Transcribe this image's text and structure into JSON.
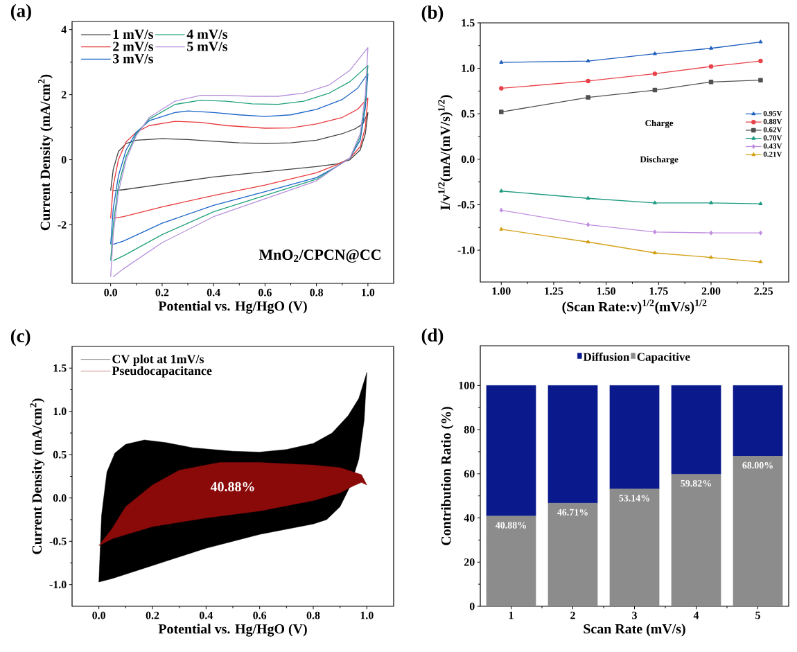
{
  "chart_data": [
    {
      "type": "line",
      "title": "(a)",
      "xlabel": "Potential vs. Hg/HgO (V)",
      "ylabel": "Current Density (mA/cm$^{2}$)",
      "xlim": [
        -0.15,
        1.1
      ],
      "ylim": [
        -3.8,
        4.25
      ],
      "xticks": [
        {
          "value": 0,
          "label": "0.0"
        },
        {
          "value": 0.2,
          "label": "0.2"
        },
        {
          "value": 0.4,
          "label": "0.4"
        },
        {
          "value": 0.6,
          "label": "0.6"
        },
        {
          "value": 0.8,
          "label": "0.8"
        },
        {
          "value": 1.0,
          "label": "1.0"
        }
      ],
      "yticks": [
        -2,
        0,
        2,
        4
      ],
      "legend": "top left",
      "annotations": [
        "MnO$_{2}$/CPCN@CC"
      ],
      "series": [
        {
          "name": "1 mV/s",
          "color": "#404040",
          "x": [
            0,
            0.01,
            0.03,
            0.06,
            0.1,
            0.2,
            0.3,
            0.4,
            0.5,
            0.6,
            0.7,
            0.8,
            0.9,
            0.95,
            0.98,
            1.0
          ],
          "values": [
            -0.95,
            -0.3,
            0.25,
            0.5,
            0.6,
            0.65,
            0.62,
            0.57,
            0.52,
            0.5,
            0.52,
            0.6,
            0.8,
            0.95,
            1.1,
            1.45
          ]
        },
        {
          "color": "#404040",
          "x": [
            0.01,
            0.05,
            0.2,
            0.4,
            0.6,
            0.8,
            0.88,
            0.93,
            0.97,
            0.99,
            1.0
          ],
          "values": [
            -0.95,
            -0.92,
            -0.75,
            -0.53,
            -0.37,
            -0.21,
            -0.13,
            0.0,
            0.3,
            0.8,
            1.45
          ]
        },
        {
          "name": "2 mV/s",
          "color": "#e8393b",
          "x": [
            0,
            0.01,
            0.03,
            0.06,
            0.1,
            0.15,
            0.25,
            0.35,
            0.45,
            0.6,
            0.7,
            0.8,
            0.9,
            0.96,
            1.0
          ],
          "values": [
            -1.8,
            -0.8,
            0.0,
            0.55,
            0.85,
            1.05,
            1.18,
            1.15,
            1.05,
            0.97,
            0.98,
            1.1,
            1.3,
            1.55,
            1.9
          ]
        },
        {
          "color": "#e8393b",
          "x": [
            0.01,
            0.05,
            0.2,
            0.4,
            0.6,
            0.8,
            0.88,
            0.93,
            0.97,
            0.99,
            1.0
          ],
          "values": [
            -1.8,
            -1.75,
            -1.45,
            -1.1,
            -0.78,
            -0.4,
            -0.15,
            0.05,
            0.4,
            1.0,
            1.9
          ]
        },
        {
          "name": "3 mV/s",
          "color": "#1a64c8",
          "x": [
            0,
            0.01,
            0.03,
            0.06,
            0.1,
            0.15,
            0.25,
            0.3,
            0.4,
            0.5,
            0.6,
            0.7,
            0.8,
            0.9,
            0.96,
            1.0
          ],
          "values": [
            -2.6,
            -1.5,
            -0.5,
            0.3,
            0.85,
            1.2,
            1.45,
            1.5,
            1.45,
            1.38,
            1.33,
            1.38,
            1.55,
            1.85,
            2.2,
            2.65
          ]
        },
        {
          "color": "#1a64c8",
          "x": [
            0.01,
            0.05,
            0.2,
            0.4,
            0.6,
            0.8,
            0.88,
            0.93,
            0.97,
            0.99,
            1.0
          ],
          "values": [
            -2.6,
            -2.5,
            -1.95,
            -1.4,
            -0.98,
            -0.55,
            -0.2,
            0.05,
            0.6,
            1.6,
            2.65
          ]
        },
        {
          "name": "4 mV/s",
          "color": "#1fa07a",
          "x": [
            0,
            0.01,
            0.03,
            0.06,
            0.1,
            0.15,
            0.25,
            0.35,
            0.45,
            0.55,
            0.65,
            0.75,
            0.85,
            0.93,
            1.0
          ],
          "values": [
            -3.1,
            -2.0,
            -0.8,
            0.1,
            0.8,
            1.25,
            1.7,
            1.83,
            1.8,
            1.72,
            1.7,
            1.8,
            2.05,
            2.4,
            2.9
          ]
        },
        {
          "color": "#1fa07a",
          "x": [
            0.01,
            0.05,
            0.2,
            0.4,
            0.6,
            0.8,
            0.88,
            0.93,
            0.97,
            0.99,
            1.0
          ],
          "values": [
            -3.1,
            -2.95,
            -2.3,
            -1.6,
            -1.1,
            -0.6,
            -0.2,
            0.05,
            0.7,
            1.8,
            2.9
          ]
        },
        {
          "name": "5 mV/s",
          "color": "#b48fdc",
          "x": [
            0,
            0.01,
            0.03,
            0.06,
            0.1,
            0.15,
            0.25,
            0.35,
            0.45,
            0.55,
            0.65,
            0.75,
            0.85,
            0.93,
            1.0
          ],
          "values": [
            -3.6,
            -2.3,
            -1.0,
            0.0,
            0.75,
            1.3,
            1.8,
            1.98,
            1.98,
            1.95,
            1.95,
            2.05,
            2.3,
            2.75,
            3.45
          ]
        },
        {
          "color": "#b48fdc",
          "x": [
            0.01,
            0.05,
            0.2,
            0.4,
            0.6,
            0.8,
            0.88,
            0.93,
            0.97,
            0.99,
            1.0
          ],
          "values": [
            -3.6,
            -3.35,
            -2.55,
            -1.75,
            -1.2,
            -0.65,
            -0.2,
            0.05,
            0.8,
            2.0,
            3.45
          ]
        }
      ]
    },
    {
      "type": "line",
      "title": "(b)",
      "xlabel": "(Scan Rate:v)$^{1/2}$(mV/s)$^{1/2}$",
      "ylabel": "I/v$^{1/2}$(mA/(mV/s)$^{1/2}$)",
      "xlim": [
        0.9,
        2.37
      ],
      "ylim": [
        -1.35,
        1.5
      ],
      "xticks": [
        {
          "value": 1,
          "label": "1.00"
        },
        {
          "value": 1.25,
          "label": "1.25"
        },
        {
          "value": 1.5,
          "label": "1.50"
        },
        {
          "value": 1.75,
          "label": "1.75"
        },
        {
          "value": 2,
          "label": "2.00"
        },
        {
          "value": 2.25,
          "label": "2.25"
        }
      ],
      "yticks": [
        {
          "value": -1,
          "label": "-1.0"
        },
        {
          "value": -0.5,
          "label": "-0.5"
        },
        {
          "value": 0,
          "label": "0.0"
        },
        {
          "value": 0.5,
          "label": "0.5"
        },
        {
          "value": 1,
          "label": "1.0"
        },
        {
          "value": 1.5,
          "label": "1.5"
        }
      ],
      "legend": "right",
      "annotations": [
        "Charge",
        "Discharge"
      ],
      "x": [
        1,
        1.414,
        1.732,
        2,
        2.236
      ],
      "series": [
        {
          "name": "0.95V",
          "color": "#1f5fbf",
          "marker": "triangle",
          "values": [
            1.065,
            1.08,
            1.16,
            1.22,
            1.29
          ]
        },
        {
          "name": "0.88V",
          "color": "#e8434a",
          "marker": "circle",
          "values": [
            0.78,
            0.86,
            0.94,
            1.02,
            1.08
          ]
        },
        {
          "name": "0.62V",
          "color": "#505050",
          "marker": "square",
          "values": [
            0.52,
            0.68,
            0.76,
            0.85,
            0.87
          ]
        },
        {
          "name": "0.70V",
          "color": "#1a9a80",
          "marker": "triangle",
          "values": [
            -0.35,
            -0.43,
            -0.48,
            -0.48,
            -0.49
          ]
        },
        {
          "name": "0.43V",
          "color": "#c08ee0",
          "marker": "diamond",
          "values": [
            -0.56,
            -0.72,
            -0.8,
            -0.81,
            -0.81
          ]
        },
        {
          "name": "0.21V",
          "color": "#d4a017",
          "marker": "triangle",
          "values": [
            -0.77,
            -0.91,
            -1.03,
            -1.08,
            -1.13
          ]
        }
      ]
    },
    {
      "type": "area",
      "title": "(c)",
      "xlabel": "Potential vs. Hg/HgO (V)",
      "ylabel": "Current Density (mA/cm$^{2}$)",
      "xlim": [
        -0.1,
        1.1
      ],
      "ylim": [
        -1.25,
        1.75
      ],
      "xticks": [
        {
          "value": 0,
          "label": "0.0"
        },
        {
          "value": 0.2,
          "label": "0.2"
        },
        {
          "value": 0.4,
          "label": "0.4"
        },
        {
          "value": 0.6,
          "label": "0.6"
        },
        {
          "value": 0.8,
          "label": "0.8"
        },
        {
          "value": 1.0,
          "label": "1.0"
        }
      ],
      "yticks": [
        {
          "value": -1,
          "label": "-1.0"
        },
        {
          "value": -0.5,
          "label": "-0.5"
        },
        {
          "value": 0,
          "label": "0.0"
        },
        {
          "value": 0.5,
          "label": "0.5"
        },
        {
          "value": 1,
          "label": "1.0"
        },
        {
          "value": 1.5,
          "label": "1.5"
        }
      ],
      "legend": "top left",
      "annotations": [
        "40.88%"
      ],
      "series": [
        {
          "name": "CV plot at 1mV/s",
          "color": "#000000",
          "x": [
            0,
            0.01,
            0.03,
            0.06,
            0.1,
            0.17,
            0.25,
            0.35,
            0.5,
            0.6,
            0.7,
            0.8,
            0.87,
            0.93,
            0.97,
            1.0,
            0.99,
            0.97,
            0.94,
            0.9,
            0.85,
            0.8,
            0.6,
            0.4,
            0.2,
            0.05,
            0.0
          ],
          "values": [
            -0.97,
            -0.2,
            0.3,
            0.52,
            0.62,
            0.67,
            0.64,
            0.58,
            0.54,
            0.53,
            0.56,
            0.63,
            0.75,
            0.95,
            1.15,
            1.45,
            0.9,
            0.45,
            0.15,
            -0.1,
            -0.25,
            -0.3,
            -0.42,
            -0.58,
            -0.78,
            -0.93,
            -0.97
          ]
        },
        {
          "name": "Pseudocapacitance",
          "color": "#8a0a0a",
          "x": [
            0,
            0.05,
            0.1,
            0.2,
            0.3,
            0.45,
            0.6,
            0.8,
            0.9,
            0.95,
            0.98,
            1.0,
            0.98,
            0.95,
            0.9,
            0.8,
            0.6,
            0.4,
            0.2,
            0.05,
            0.0
          ],
          "values": [
            -0.55,
            -0.35,
            -0.1,
            0.15,
            0.32,
            0.41,
            0.41,
            0.38,
            0.35,
            0.3,
            0.27,
            0.15,
            0.18,
            0.14,
            0.06,
            -0.03,
            -0.15,
            -0.23,
            -0.33,
            -0.47,
            -0.55
          ]
        }
      ]
    },
    {
      "type": "bar",
      "stacked": true,
      "title": "(d)",
      "xlabel": "Scan Rate (mV/s)",
      "ylabel": "Contribution Ratio (%)",
      "categories": [
        "1",
        "2",
        "3",
        "4",
        "5"
      ],
      "ylim": [
        0,
        118
      ],
      "yticks": [
        0,
        20,
        40,
        60,
        80,
        100
      ],
      "legend": "top",
      "series": [
        {
          "name": "Capacitive",
          "color": "#8c8c8c",
          "values": [
            40.88,
            46.71,
            53.14,
            59.82,
            68.0
          ],
          "value_labels": [
            "40.88%",
            "46.71%",
            "53.14%",
            "59.82%",
            "68.00%"
          ]
        },
        {
          "name": "Diffusion",
          "color": "#0a1a8c",
          "values": [
            59.12,
            53.29,
            46.86,
            40.18,
            32.0
          ]
        }
      ]
    }
  ]
}
